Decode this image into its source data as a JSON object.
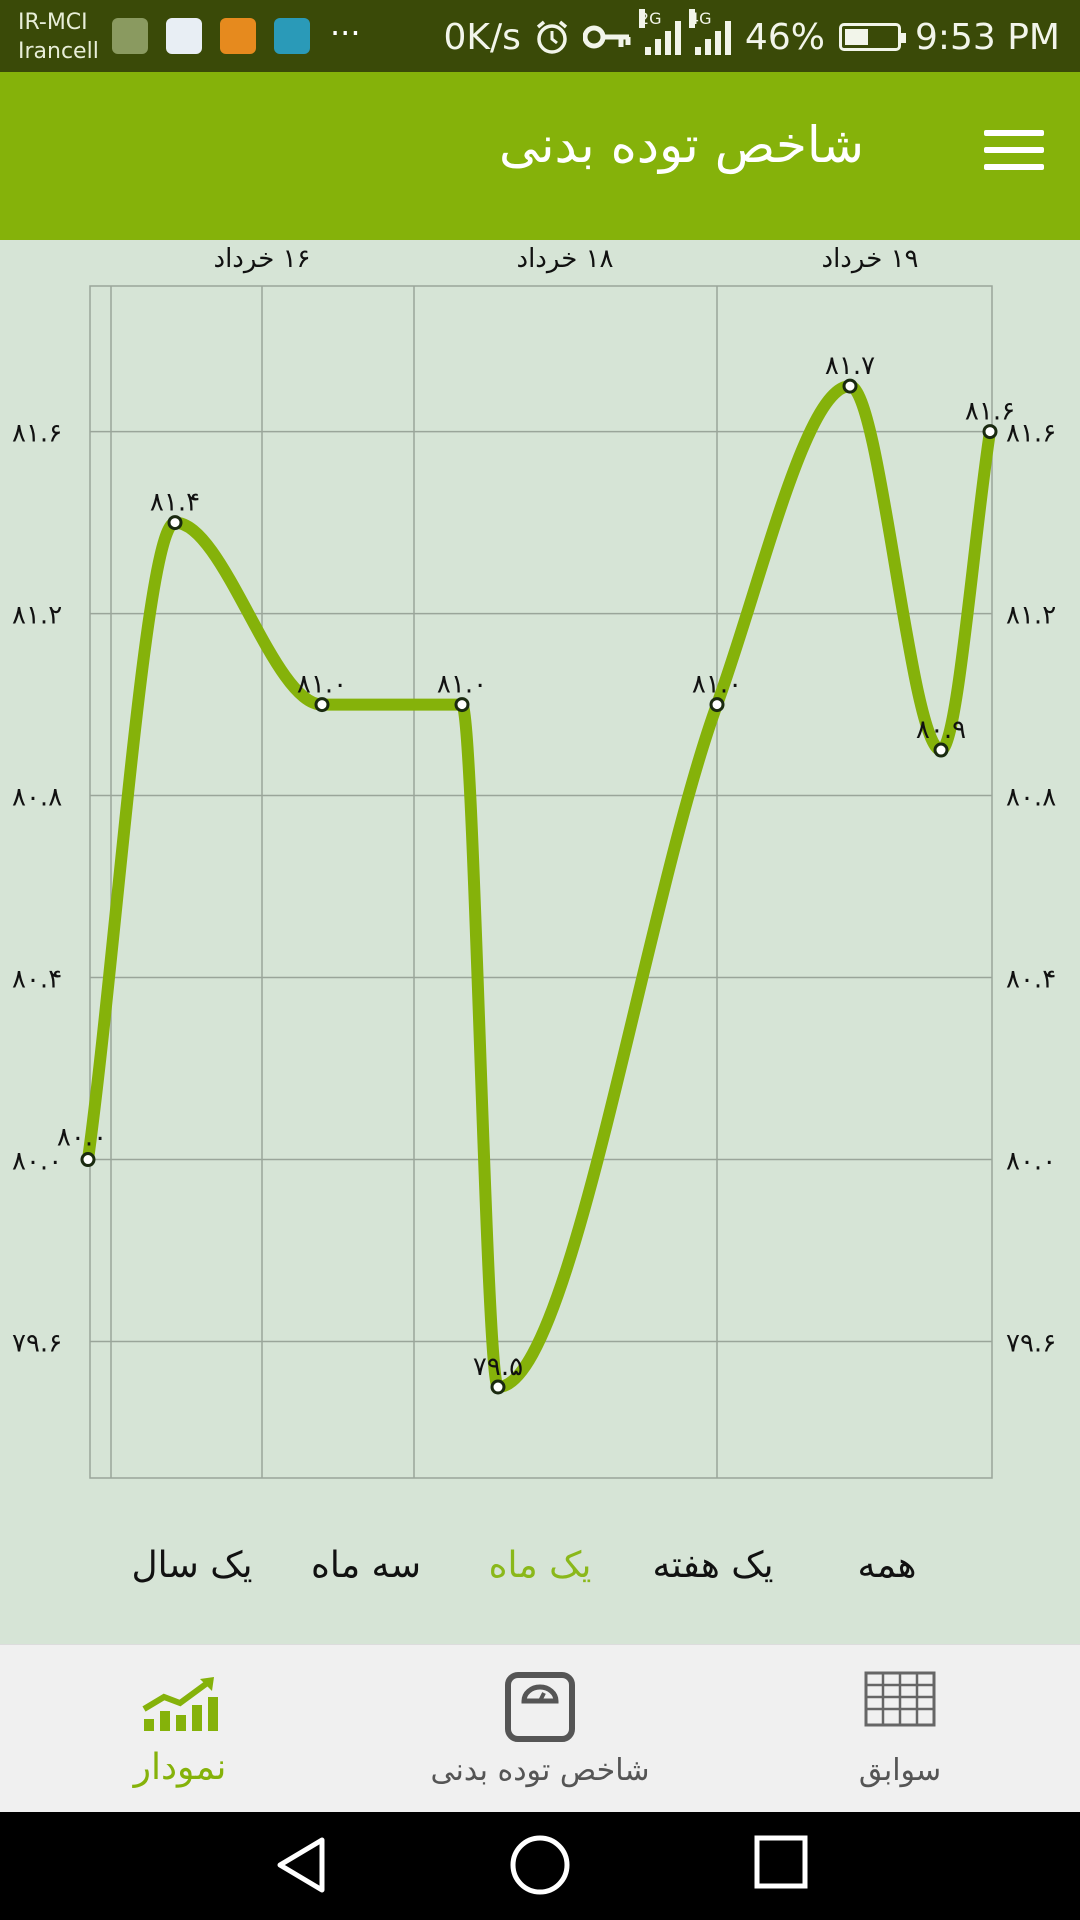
{
  "status_bar": {
    "carrier_line1": "IR-MCI",
    "carrier_line2": "Irancell",
    "more": "···",
    "net_speed": "0K/s",
    "signal1_label": "2G",
    "signal2_label": "4G",
    "battery": "46%",
    "battery_level": 0.46,
    "time": "9:53 PM"
  },
  "toolbar": {
    "title": "شاخص توده بدنی",
    "menu_icon": "hamburger-menu-icon"
  },
  "chart_data": {
    "type": "line",
    "x_tick_labels": [
      "۱۶ خرداد",
      "۱۸ خرداد",
      "۱۹ خرداد"
    ],
    "y_tick_labels": [
      "۸۱.۶",
      "۸۱.۲",
      "۸۰.۸",
      "۸۰.۴",
      "۸۰.۰",
      "۷۹.۶"
    ],
    "y_ticks": [
      81.6,
      81.2,
      80.8,
      80.4,
      80.0,
      79.6
    ],
    "ylim": [
      79.3,
      81.92
    ],
    "grid": true,
    "line_color": "#85b20a",
    "series": [
      {
        "values": [
          80.0,
          81.4,
          81.0,
          81.0,
          79.5,
          81.0,
          81.7,
          80.9,
          81.6
        ],
        "labels": [
          "۸۰.۰",
          "۸۱.۴",
          "۸۱.۰",
          "۸۱.۰",
          "۷۹.۵",
          "۸۱.۰",
          "۸۱.۷",
          "۸۰.۹",
          "۸۱.۶"
        ]
      }
    ]
  },
  "range_tabs": {
    "year": "یک سال",
    "three_months": "سه ماه",
    "month": "یک ماه",
    "week": "یک هفته",
    "all": "همه",
    "active": "month"
  },
  "bottom_nav": {
    "chart": "نمودار",
    "bmi": "شاخص توده بدنی",
    "history": "سوابق",
    "active": "chart"
  },
  "colors": {
    "toolbar": "#85b20a",
    "status_bar": "#3a4a08",
    "accent": "#85b20a",
    "background": "#d6e4d6"
  }
}
